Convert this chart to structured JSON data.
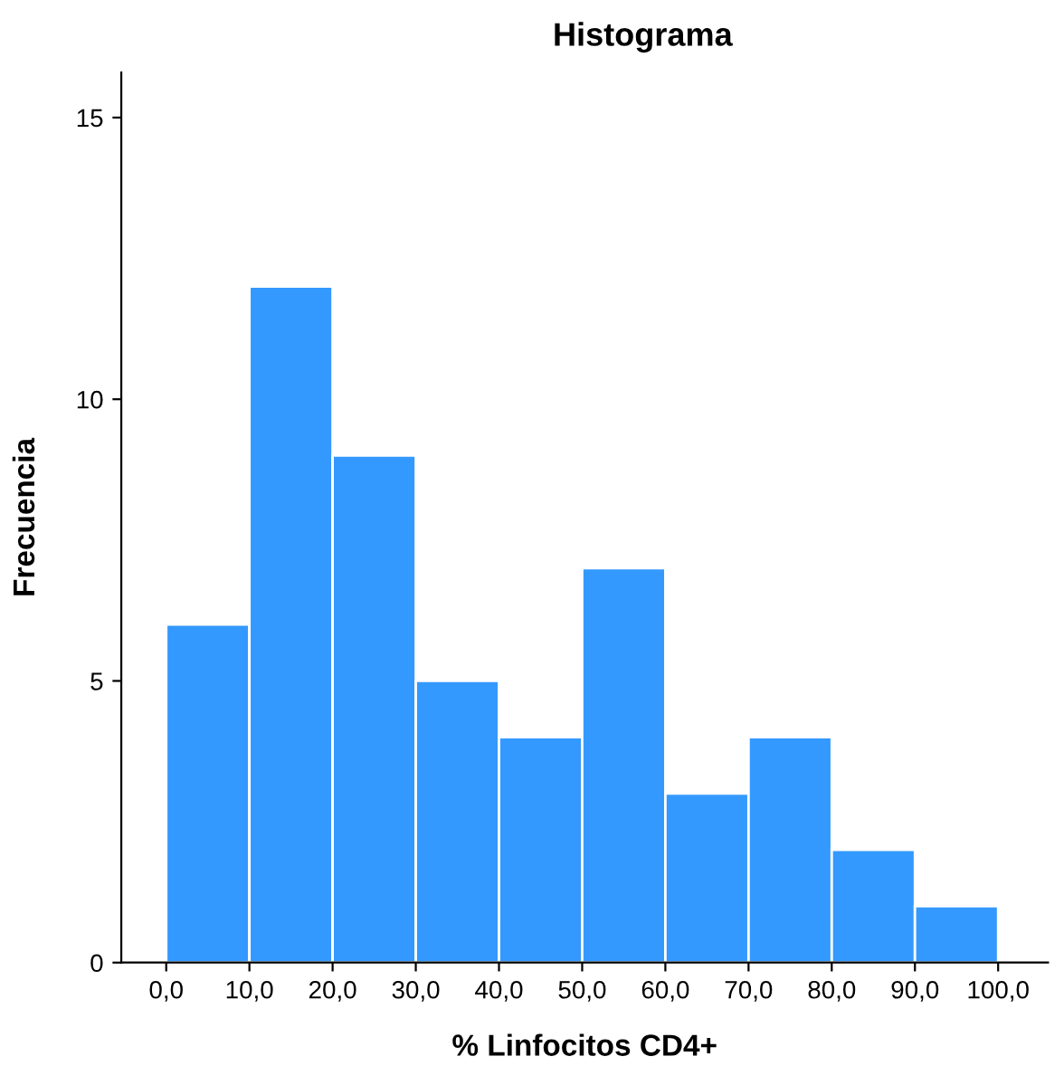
{
  "chart_data": {
    "type": "histogram",
    "title": "Histograma",
    "xlabel": "% Linfocitos CD4+",
    "ylabel": "Frecuencia",
    "bins": [
      0,
      10,
      20,
      30,
      40,
      50,
      60,
      70,
      80,
      90,
      100
    ],
    "values": [
      6,
      12,
      9,
      5,
      4,
      7,
      3,
      4,
      2,
      1
    ],
    "color": "#3399ff",
    "xlim": [
      -5.4,
      106
    ],
    "xticks": [
      {
        "value": 0,
        "label": "0,0"
      },
      {
        "value": 10,
        "label": "10,0"
      },
      {
        "value": 20,
        "label": "20,0"
      },
      {
        "value": 30,
        "label": "30,0"
      },
      {
        "value": 40,
        "label": "40,0"
      },
      {
        "value": 50,
        "label": "50,0"
      },
      {
        "value": 60,
        "label": "60,0"
      },
      {
        "value": 70,
        "label": "70,0"
      },
      {
        "value": 80,
        "label": "80,0"
      },
      {
        "value": 90,
        "label": "90,0"
      },
      {
        "value": 100,
        "label": "100,0"
      }
    ],
    "ylim": [
      0,
      15.8
    ],
    "yticks": [
      0,
      5,
      10,
      15
    ],
    "grid": false
  }
}
